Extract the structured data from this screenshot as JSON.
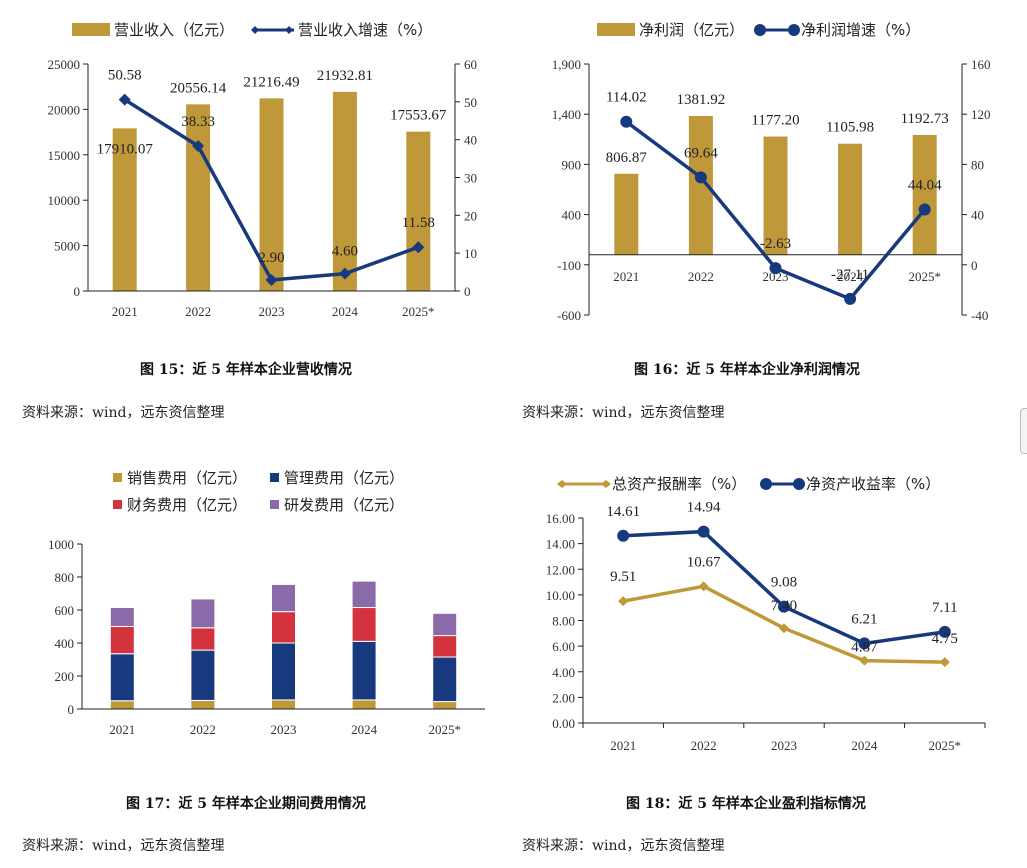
{
  "chart_data": [
    {
      "type": "bar+line",
      "categories": [
        "2021",
        "2022",
        "2023",
        "2024",
        "2025*"
      ],
      "series": [
        {
          "name": "营业收入（亿元）",
          "kind": "bar",
          "axis": "left",
          "values": [
            17910.07,
            20556.14,
            21216.49,
            21932.81,
            17553.67
          ],
          "labels": [
            "17910.07",
            "20556.14",
            "21216.49",
            "21932.81",
            "17553.67"
          ]
        },
        {
          "name": "营业收入增速（%）",
          "kind": "line",
          "axis": "right",
          "values": [
            50.58,
            38.33,
            2.9,
            4.6,
            11.58
          ],
          "labels": [
            "50.58",
            "38.33",
            "2.90",
            "4.60",
            "11.58"
          ]
        }
      ],
      "ylim": [
        0,
        25000
      ],
      "yticks": [
        "0",
        "5000",
        "10000",
        "15000",
        "20000",
        "25000"
      ],
      "y2lim": [
        0,
        60
      ],
      "y2ticks": [
        "0",
        "10",
        "20",
        "30",
        "40",
        "50",
        "60"
      ],
      "caption": "图 15：近 5 年样本企业营收情况",
      "source": "资料来源：wind，远东资信整理"
    },
    {
      "type": "bar+line",
      "categories": [
        "2021",
        "2022",
        "2023",
        "2024",
        "2025*"
      ],
      "series": [
        {
          "name": "净利润（亿元）",
          "kind": "bar",
          "axis": "left",
          "values": [
            806.87,
            1381.92,
            1177.2,
            1105.98,
            1192.73
          ],
          "labels": [
            "806.87",
            "1381.92",
            "1177.20",
            "1105.98",
            "1192.73"
          ]
        },
        {
          "name": "净利润增速（%）",
          "kind": "line",
          "axis": "right",
          "values": [
            114.02,
            69.64,
            -2.63,
            -27.11,
            44.04
          ],
          "labels": [
            "114.02",
            "69.64",
            "-2.63",
            "-27.11",
            "44.04"
          ]
        }
      ],
      "ylim": [
        -600,
        1900
      ],
      "yticks": [
        "-600",
        "-100",
        "400",
        "900",
        "1,400",
        "1,900"
      ],
      "y2lim": [
        -40,
        160
      ],
      "y2ticks": [
        "-40",
        "0",
        "40",
        "80",
        "120",
        "160"
      ],
      "caption": "图 16：近 5 年样本企业净利润情况",
      "source": "资料来源：wind，远东资信整理"
    },
    {
      "type": "stacked-bar",
      "categories": [
        "2021",
        "2022",
        "2023",
        "2024",
        "2025*"
      ],
      "series": [
        {
          "name": "销售费用（亿元）",
          "values": [
            50,
            52,
            55,
            55,
            45
          ]
        },
        {
          "name": "管理费用（亿元）",
          "values": [
            285,
            305,
            345,
            355,
            270
          ]
        },
        {
          "name": "财务费用（亿元）",
          "values": [
            165,
            135,
            190,
            205,
            130
          ]
        },
        {
          "name": "研发费用（亿元）",
          "values": [
            115,
            175,
            165,
            160,
            135
          ]
        }
      ],
      "ylim": [
        0,
        1000
      ],
      "yticks": [
        "0",
        "200",
        "400",
        "600",
        "800",
        "1000"
      ],
      "caption": "图 17：近 5 年样本企业期间费用情况",
      "source": "资料来源：wind，远东资信整理"
    },
    {
      "type": "line",
      "categories": [
        "2021",
        "2022",
        "2023",
        "2024",
        "2025*"
      ],
      "series": [
        {
          "name": "总资产报酬率（%）",
          "values": [
            9.51,
            10.67,
            7.4,
            4.87,
            4.75
          ],
          "labels": [
            "9.51",
            "10.67",
            "7.40",
            "4.87",
            "4.75"
          ]
        },
        {
          "name": "净资产收益率（%）",
          "values": [
            14.61,
            14.94,
            9.08,
            6.21,
            7.11
          ],
          "labels": [
            "14.61",
            "14.94",
            "9.08",
            "6.21",
            "7.11"
          ]
        }
      ],
      "ylim": [
        0,
        16
      ],
      "yticks": [
        "0.00",
        "2.00",
        "4.00",
        "6.00",
        "8.00",
        "10.00",
        "12.00",
        "14.00",
        "16.00"
      ],
      "caption": "图 18：近 5 年样本企业盈利指标情况",
      "source": "资料来源：wind，远东资信整理"
    }
  ],
  "colors": {
    "gold": "#bf9839",
    "navy": "#173a7e",
    "red": "#d2333c",
    "purple": "#8a6aa8",
    "axis": "#222222"
  }
}
